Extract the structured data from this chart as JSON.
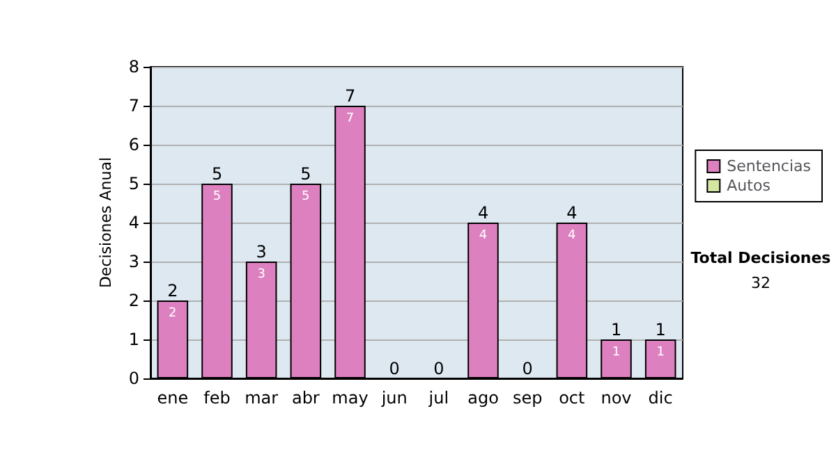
{
  "chart_data": {
    "type": "bar",
    "stacked": true,
    "ylabel": "Decisiones Anual",
    "categories": [
      "ene",
      "feb",
      "mar",
      "abr",
      "may",
      "jun",
      "jul",
      "ago",
      "sep",
      "oct",
      "nov",
      "dic"
    ],
    "series": [
      {
        "name": "Sentencias",
        "color": "#dd80c0",
        "values": [
          2,
          5,
          3,
          5,
          7,
          0,
          0,
          4,
          0,
          4,
          1,
          1
        ],
        "value_labels": [
          "2",
          "5",
          "3",
          "5",
          "7",
          null,
          null,
          "4",
          null,
          "4",
          "1",
          "1"
        ]
      },
      {
        "name": "Autos",
        "color": "#d4e6a0",
        "values": [
          0,
          0,
          0,
          0,
          0,
          0,
          0,
          0,
          0,
          0,
          0,
          0
        ]
      }
    ],
    "totals": [
      "2",
      "5",
      "3",
      "5",
      "7",
      "0",
      "0",
      "4",
      "0",
      "4",
      "1",
      "1"
    ],
    "ylim": [
      0,
      8
    ],
    "yticks": [
      0,
      1,
      2,
      3,
      4,
      5,
      6,
      7,
      8
    ],
    "grid": "y",
    "legend": "right",
    "annotations": [
      "Total Decisiones",
      "32"
    ]
  }
}
